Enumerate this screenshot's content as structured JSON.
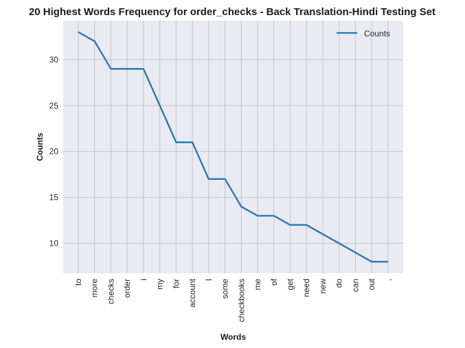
{
  "chart_data": {
    "type": "line",
    "title": "20 Highest Words Frequency for order_checks - Back Translation-Hindi Testing Set",
    "xlabel": "Words",
    "ylabel": "Counts",
    "categories": [
      "to",
      "more",
      "checks",
      "order",
      "i",
      "my",
      "for",
      "account",
      "I",
      "some",
      "checkbooks",
      "me",
      "of",
      "get",
      "need",
      "new",
      "do",
      "can",
      "out",
      ","
    ],
    "series": [
      {
        "name": "Counts",
        "values": [
          33,
          32,
          29,
          29,
          29,
          25,
          21,
          21,
          17,
          17,
          14,
          13,
          13,
          12,
          12,
          11,
          10,
          9,
          8,
          8
        ]
      }
    ],
    "yticks": [
      10,
      15,
      20,
      25,
      30
    ],
    "ylim": [
      6.75,
      34.25
    ],
    "grid": true,
    "legend": "top-right",
    "colors": {
      "line": "#1f77b4",
      "plot_bg": "#eaeaf2",
      "grid": "#c2c2c8"
    }
  }
}
